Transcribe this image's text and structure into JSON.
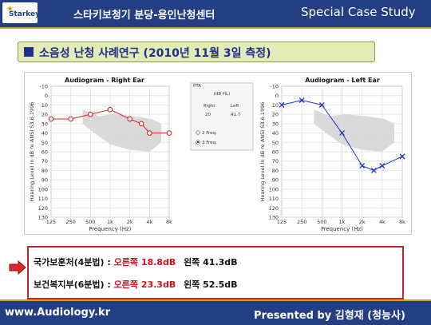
{
  "header": {
    "logo_text": "Starkey",
    "title": "스타키보청기 분당-용인난청센터",
    "right_title": "Special Case Study"
  },
  "banner": {
    "text": "소음성 난청 사례연구 (2010년 11월 3일 측정)"
  },
  "pta_box": {
    "title": "PTA",
    "unit": "(dB HL)",
    "right_label": "Right",
    "left_label": "Left",
    "right_value": "20",
    "left_value": "41.7",
    "option_2freq": "2 Freq.",
    "option_3freq": "3 Freq.",
    "selected": "3 Freq."
  },
  "chart_data": [
    {
      "type": "line",
      "title": "Audiogram - Right Ear",
      "xlabel": "Frequency (Hz)",
      "ylabel": "Hearing Level In dB re ANSI S3.6 1996",
      "x_ticks": [
        "125",
        "250",
        "500",
        "1k",
        "2k",
        "4k",
        "8k"
      ],
      "y_ticks": [
        -10,
        0,
        10,
        20,
        30,
        40,
        50,
        60,
        70,
        80,
        90,
        100,
        110,
        120,
        130
      ],
      "ylim": [
        -10,
        130
      ],
      "y_inverted": true,
      "grid": true,
      "marker": "circle",
      "color": "#d42a2a",
      "series": [
        {
          "x": [
            "125",
            "250",
            "500",
            "1k",
            "2k",
            "3k",
            "4k",
            "8k"
          ],
          "values": [
            25,
            25,
            20,
            15,
            25,
            30,
            40,
            40
          ]
        }
      ]
    },
    {
      "type": "line",
      "title": "Audiogram - Left Ear",
      "xlabel": "Frequency (Hz)",
      "ylabel": "Hearing Level In dB re ANSI S3.6 1996",
      "x_ticks": [
        "125",
        "250",
        "500",
        "1k",
        "2k",
        "4k",
        "8k"
      ],
      "y_ticks": [
        -10,
        0,
        10,
        20,
        30,
        40,
        50,
        60,
        70,
        80,
        90,
        100,
        110,
        120,
        130
      ],
      "ylim": [
        -10,
        130
      ],
      "y_inverted": true,
      "grid": true,
      "marker": "x",
      "color": "#1d33c9",
      "series": [
        {
          "x": [
            "125",
            "250",
            "500",
            "1k",
            "2k",
            "3k",
            "4k",
            "8k"
          ],
          "values": [
            10,
            5,
            10,
            40,
            75,
            80,
            75,
            65
          ]
        }
      ]
    }
  ],
  "results": {
    "line1_label": "국가보훈처(4분법) :",
    "line1_right": "오른쪽 18.8dB",
    "line1_left": "왼쪽 41.3dB",
    "line2_label": "보건복지부(6분법) :",
    "line2_right": "오른쪽 23.3dB",
    "line2_left": "왼쪽 52.5dB"
  },
  "footer": {
    "url": "www.Audiology.kr",
    "presented": "Presented by 김형재 (청능사)"
  }
}
